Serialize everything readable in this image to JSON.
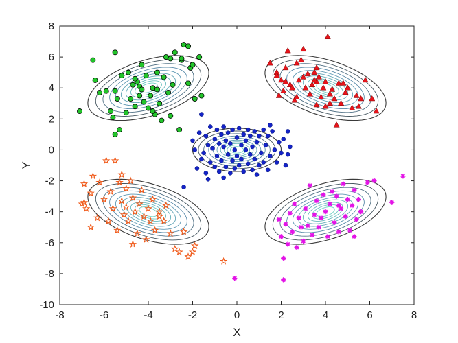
{
  "chart_data": {
    "type": "scatter",
    "title": "",
    "xlabel": "X",
    "ylabel": "Y",
    "xlim": [
      -8,
      8
    ],
    "ylim": [
      -10,
      8
    ],
    "x_ticks": [
      -8,
      -6,
      -4,
      -2,
      0,
      2,
      4,
      6,
      8
    ],
    "y_ticks": [
      -10,
      -8,
      -6,
      -4,
      -2,
      0,
      2,
      4,
      6,
      8
    ],
    "x_tick_labels": [
      "-8",
      "-6",
      "-4",
      "-2",
      "0",
      "2",
      "4",
      "6",
      "8"
    ],
    "y_tick_labels": [
      "-10",
      "-8",
      "-6",
      "-4",
      "-2",
      "0",
      "2",
      "4",
      "6",
      "8"
    ],
    "grid": false,
    "legend": "none",
    "contour_colors": {
      "outer": "#3a3a3a",
      "mid": "#5b8fb0",
      "inner": "#6fd0c4"
    },
    "clusters": [
      {
        "marker": "circle",
        "color": "#22c42a",
        "edge": "#000000",
        "center": [
          -4,
          4
        ],
        "contour_semi_axes": [
          3,
          1.7
        ],
        "contour_angle_deg": 30,
        "points": [
          [
            -7.1,
            2.5
          ],
          [
            -6.4,
            4.5
          ],
          [
            -6.2,
            3.7
          ],
          [
            -5.9,
            3.8
          ],
          [
            -5.7,
            2.5
          ],
          [
            -5.6,
            2.1
          ],
          [
            -5.5,
            6.3
          ],
          [
            -5.5,
            3.8
          ],
          [
            -5.5,
            1.0
          ],
          [
            -5.4,
            3.3
          ],
          [
            -5.3,
            1.3
          ],
          [
            -5.2,
            4.8
          ],
          [
            -4.9,
            5.0
          ],
          [
            -4.8,
            3.3
          ],
          [
            -4.7,
            4.2
          ],
          [
            -4.6,
            2.8
          ],
          [
            -4.5,
            4.4
          ],
          [
            -4.4,
            4.1
          ],
          [
            -4.3,
            5.5
          ],
          [
            -4.3,
            3.9
          ],
          [
            -4.2,
            3.1
          ],
          [
            -4.1,
            4.8
          ],
          [
            -4.0,
            2.7
          ],
          [
            -3.9,
            3.5
          ],
          [
            -3.8,
            4.0
          ],
          [
            -3.7,
            2.3
          ],
          [
            -3.6,
            3.9
          ],
          [
            -3.6,
            5.0
          ],
          [
            -3.5,
            3.0
          ],
          [
            -3.4,
            1.9
          ],
          [
            -3.3,
            4.7
          ],
          [
            -3.2,
            6.0
          ],
          [
            -3.1,
            3.7
          ],
          [
            -3.0,
            2.2
          ],
          [
            -2.9,
            4.2
          ],
          [
            -2.8,
            6.3
          ],
          [
            -2.6,
            1.3
          ],
          [
            -2.5,
            5.8
          ],
          [
            -2.4,
            6.8
          ],
          [
            -2.2,
            6.7
          ],
          [
            -2.2,
            4.3
          ],
          [
            -2.1,
            5.3
          ],
          [
            -2.0,
            5.5
          ],
          [
            -1.9,
            3.3
          ],
          [
            -1.7,
            6.0
          ],
          [
            -1.6,
            3.5
          ],
          [
            -2.5,
            5.9
          ],
          [
            -3.0,
            5.9
          ],
          [
            -4.6,
            4.6
          ],
          [
            -6.5,
            5.8
          ],
          [
            -5.0,
            2.4
          ],
          [
            -3.8,
            2.5
          ],
          [
            -4.4,
            3.5
          ]
        ]
      },
      {
        "marker": "triangle",
        "color": "#e8141b",
        "edge": "#7a0000",
        "center": [
          4,
          4
        ],
        "contour_semi_axes": [
          3,
          1.7
        ],
        "contour_angle_deg": -30,
        "points": [
          [
            1.5,
            5.6
          ],
          [
            1.8,
            5.0
          ],
          [
            1.8,
            4.8
          ],
          [
            1.9,
            3.5
          ],
          [
            2.0,
            4.5
          ],
          [
            2.1,
            3.8
          ],
          [
            2.2,
            5.3
          ],
          [
            2.3,
            6.4
          ],
          [
            2.4,
            4.2
          ],
          [
            2.5,
            4.0
          ],
          [
            2.6,
            3.2
          ],
          [
            2.7,
            5.6
          ],
          [
            2.8,
            4.5
          ],
          [
            2.9,
            5.8
          ],
          [
            3.0,
            4.7
          ],
          [
            3.0,
            6.5
          ],
          [
            3.1,
            4.0
          ],
          [
            3.2,
            4.9
          ],
          [
            3.3,
            3.6
          ],
          [
            3.4,
            4.2
          ],
          [
            3.5,
            5.0
          ],
          [
            3.6,
            4.4
          ],
          [
            3.6,
            2.9
          ],
          [
            3.7,
            4.7
          ],
          [
            3.8,
            3.4
          ],
          [
            3.9,
            4.0
          ],
          [
            4.0,
            2.8
          ],
          [
            4.0,
            4.4
          ],
          [
            4.1,
            7.3
          ],
          [
            4.2,
            3.0
          ],
          [
            4.3,
            3.9
          ],
          [
            4.4,
            3.3
          ],
          [
            4.5,
            1.6
          ],
          [
            4.6,
            4.3
          ],
          [
            4.7,
            3.0
          ],
          [
            4.9,
            3.7
          ],
          [
            5.0,
            4.0
          ],
          [
            5.2,
            2.7
          ],
          [
            5.4,
            3.5
          ],
          [
            5.5,
            2.8
          ],
          [
            5.6,
            3.3
          ],
          [
            5.8,
            4.5
          ],
          [
            6.1,
            3.3
          ],
          [
            6.3,
            2.5
          ],
          [
            4.2,
            3.6
          ],
          [
            3.5,
            4.5
          ],
          [
            4.8,
            4.3
          ],
          [
            2.7,
            3.4
          ],
          [
            3.6,
            5.3
          ],
          [
            2.2,
            4.4
          ]
        ]
      },
      {
        "marker": "dot",
        "color": "#1423c8",
        "edge": "#0a1a8a",
        "center": [
          0,
          0
        ],
        "contour_semi_axes": [
          2,
          1.4
        ],
        "contour_angle_deg": 0,
        "points": [
          [
            -2.0,
            0.6
          ],
          [
            -1.9,
            0.0
          ],
          [
            -1.8,
            -1.2
          ],
          [
            -1.7,
            1.1
          ],
          [
            -1.6,
            -0.6
          ],
          [
            -1.6,
            2.3
          ],
          [
            -1.5,
            -0.2
          ],
          [
            -1.4,
            0.9
          ],
          [
            -1.4,
            -1.5
          ],
          [
            -1.3,
            0.3
          ],
          [
            -1.2,
            -0.8
          ],
          [
            -1.2,
            1.5
          ],
          [
            -1.1,
            0.1
          ],
          [
            -1.0,
            -1.1
          ],
          [
            -1.0,
            0.7
          ],
          [
            -0.9,
            1.3
          ],
          [
            -0.9,
            -0.4
          ],
          [
            -0.8,
            0.4
          ],
          [
            -0.8,
            -1.4
          ],
          [
            -0.7,
            1.0
          ],
          [
            -0.7,
            -0.7
          ],
          [
            -0.6,
            0.2
          ],
          [
            -0.6,
            1.5
          ],
          [
            -0.5,
            -1.1
          ],
          [
            -0.5,
            0.6
          ],
          [
            -0.4,
            -0.3
          ],
          [
            -0.4,
            1.1
          ],
          [
            -0.3,
            -1.5
          ],
          [
            -0.3,
            0.4
          ],
          [
            -0.2,
            -0.7
          ],
          [
            -0.2,
            1.3
          ],
          [
            -0.1,
            0.0
          ],
          [
            -0.1,
            -1.2
          ],
          [
            0.0,
            0.8
          ],
          [
            0.0,
            -0.4
          ],
          [
            0.1,
            1.4
          ],
          [
            0.1,
            -1.0
          ],
          [
            0.2,
            0.3
          ],
          [
            0.2,
            -0.6
          ],
          [
            0.3,
            1.0
          ],
          [
            0.3,
            -1.4
          ],
          [
            0.4,
            0.0
          ],
          [
            0.4,
            0.6
          ],
          [
            0.5,
            -0.9
          ],
          [
            0.5,
            1.3
          ],
          [
            0.6,
            -0.3
          ],
          [
            0.6,
            0.9
          ],
          [
            0.7,
            -1.3
          ],
          [
            0.7,
            0.2
          ],
          [
            0.8,
            1.2
          ],
          [
            0.8,
            -0.6
          ],
          [
            0.9,
            0.5
          ],
          [
            1.0,
            -1.0
          ],
          [
            1.0,
            0.9
          ],
          [
            1.1,
            -0.2
          ],
          [
            1.2,
            1.3
          ],
          [
            1.2,
            -0.8
          ],
          [
            1.3,
            0.3
          ],
          [
            1.4,
            -1.3
          ],
          [
            1.4,
            0.9
          ],
          [
            1.5,
            -0.4
          ],
          [
            1.6,
            1.2
          ],
          [
            1.7,
            0.0
          ],
          [
            1.8,
            -0.8
          ],
          [
            1.9,
            0.5
          ],
          [
            2.0,
            -0.2
          ],
          [
            2.1,
            0.7
          ],
          [
            2.2,
            -1.0
          ],
          [
            2.3,
            -0.3
          ],
          [
            2.4,
            0.2
          ],
          [
            -2.4,
            -2.4
          ],
          [
            -1.3,
            -1.9
          ],
          [
            2.3,
            1.2
          ],
          [
            1.5,
            1.6
          ],
          [
            -0.6,
            -1.8
          ],
          [
            0.9,
            -1.6
          ]
        ]
      },
      {
        "marker": "star",
        "color": "#f05a1a",
        "edge": "#c43b00",
        "center": [
          -4,
          -4
        ],
        "contour_semi_axes": [
          3,
          1.7
        ],
        "contour_angle_deg": -30,
        "points": [
          [
            -7.0,
            -3.5
          ],
          [
            -6.9,
            -2.2
          ],
          [
            -6.8,
            -3.8
          ],
          [
            -6.6,
            -2.8
          ],
          [
            -6.6,
            -5.0
          ],
          [
            -6.5,
            -1.7
          ],
          [
            -6.3,
            -4.4
          ],
          [
            -6.2,
            -2.1
          ],
          [
            -6.0,
            -3.2
          ],
          [
            -5.9,
            -0.7
          ],
          [
            -5.8,
            -4.6
          ],
          [
            -5.7,
            -2.7
          ],
          [
            -5.6,
            -3.8
          ],
          [
            -5.5,
            -0.7
          ],
          [
            -5.4,
            -5.2
          ],
          [
            -5.3,
            -2.1
          ],
          [
            -5.2,
            -3.3
          ],
          [
            -5.1,
            -4.2
          ],
          [
            -5.0,
            -2.5
          ],
          [
            -5.0,
            -3.7
          ],
          [
            -4.9,
            -4.6
          ],
          [
            -4.8,
            -2.0
          ],
          [
            -4.7,
            -3.1
          ],
          [
            -4.6,
            -4.0
          ],
          [
            -4.5,
            -5.4
          ],
          [
            -4.4,
            -3.5
          ],
          [
            -4.3,
            -2.6
          ],
          [
            -4.2,
            -4.3
          ],
          [
            -4.1,
            -5.8
          ],
          [
            -4.0,
            -3.8
          ],
          [
            -3.9,
            -4.6
          ],
          [
            -3.8,
            -3.2
          ],
          [
            -3.7,
            -5.2
          ],
          [
            -3.5,
            -4.0
          ],
          [
            -3.3,
            -4.6
          ],
          [
            -3.2,
            -3.6
          ],
          [
            -3.0,
            -5.4
          ],
          [
            -2.8,
            -6.4
          ],
          [
            -2.6,
            -6.6
          ],
          [
            -2.4,
            -5.3
          ],
          [
            -2.2,
            -6.9
          ],
          [
            -2.0,
            -6.6
          ],
          [
            -0.6,
            -7.2
          ],
          [
            -1.9,
            -6.2
          ],
          [
            -4.7,
            -6.1
          ],
          [
            -6.9,
            -3.4
          ],
          [
            -5.2,
            -1.6
          ],
          [
            -3.5,
            -4.3
          ]
        ]
      },
      {
        "marker": "asterisk",
        "color": "#e312e6",
        "edge": "#b000b6",
        "center": [
          4,
          -4
        ],
        "contour_semi_axes": [
          3,
          1.7
        ],
        "contour_angle_deg": 30,
        "points": [
          [
            1.9,
            -4.5
          ],
          [
            2.0,
            -5.6
          ],
          [
            2.1,
            -7.0
          ],
          [
            2.2,
            -4.8
          ],
          [
            2.3,
            -6.1
          ],
          [
            2.4,
            -4.1
          ],
          [
            2.5,
            -5.3
          ],
          [
            2.6,
            -3.5
          ],
          [
            2.7,
            -6.3
          ],
          [
            2.8,
            -4.4
          ],
          [
            2.9,
            -5.0
          ],
          [
            3.0,
            -5.9
          ],
          [
            3.1,
            -3.8
          ],
          [
            3.2,
            -4.9
          ],
          [
            3.3,
            -2.3
          ],
          [
            3.4,
            -5.5
          ],
          [
            3.5,
            -4.2
          ],
          [
            3.6,
            -3.3
          ],
          [
            3.7,
            -5.0
          ],
          [
            3.8,
            -4.4
          ],
          [
            3.9,
            -2.9
          ],
          [
            4.0,
            -4.0
          ],
          [
            4.1,
            -5.6
          ],
          [
            4.2,
            -3.5
          ],
          [
            4.3,
            -2.7
          ],
          [
            4.4,
            -4.7
          ],
          [
            4.5,
            -3.0
          ],
          [
            4.6,
            -5.3
          ],
          [
            4.7,
            -3.8
          ],
          [
            4.8,
            -2.2
          ],
          [
            4.9,
            -4.3
          ],
          [
            5.0,
            -3.2
          ],
          [
            5.1,
            -5.2
          ],
          [
            5.2,
            -3.6
          ],
          [
            5.3,
            -2.6
          ],
          [
            5.4,
            -4.5
          ],
          [
            5.5,
            -3.2
          ],
          [
            5.6,
            -4.0
          ],
          [
            6.2,
            -2.0
          ],
          [
            7.0,
            -3.4
          ],
          [
            7.5,
            -1.7
          ],
          [
            5.9,
            -2.1
          ],
          [
            -0.1,
            -8.3
          ],
          [
            2.1,
            -8.4
          ],
          [
            5.3,
            -5.6
          ],
          [
            4.6,
            -3.6
          ]
        ]
      }
    ]
  }
}
